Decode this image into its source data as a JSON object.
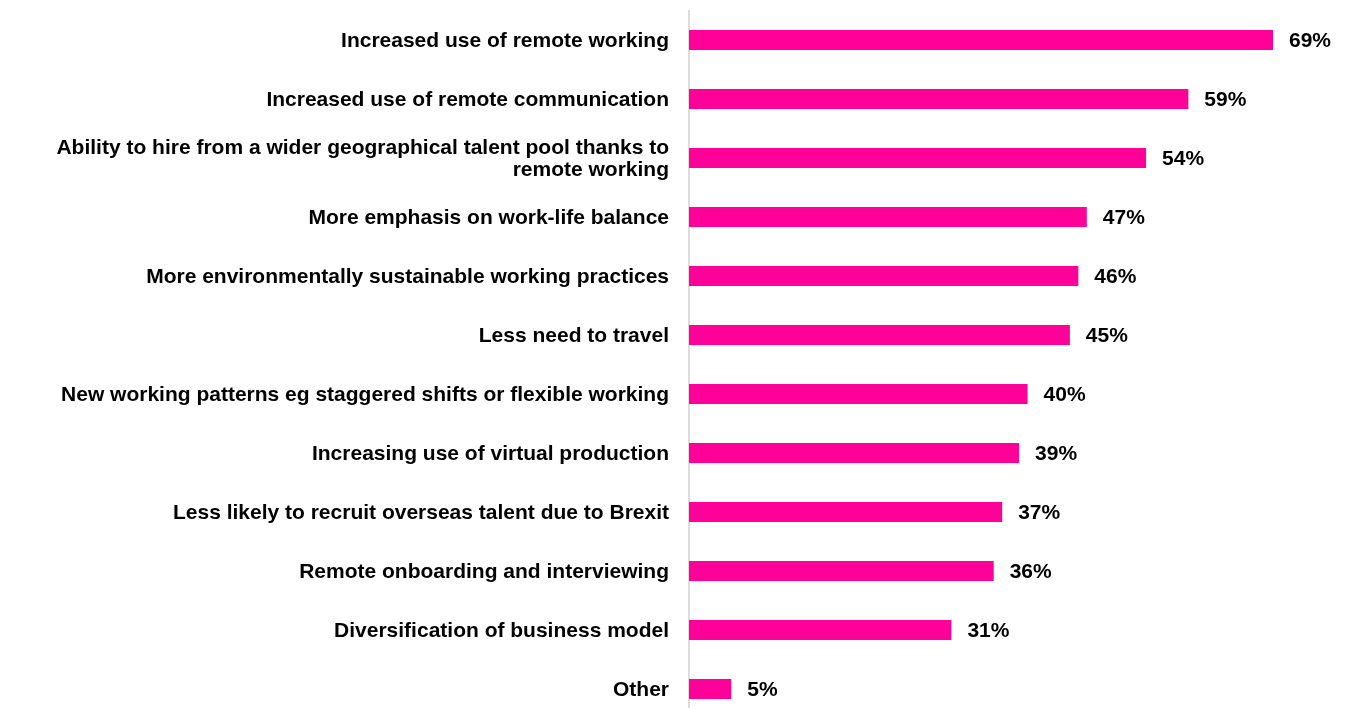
{
  "chart_data": {
    "type": "bar",
    "orientation": "horizontal",
    "categories": [
      "Increased use of remote working",
      "Increased use of remote communication",
      "Ability to hire from a wider geographical talent pool thanks to remote working",
      "More emphasis on work-life balance",
      "More environmentally sustainable working practices",
      "Less need to travel",
      "New working patterns eg staggered shifts or flexible working",
      "Increasing use of virtual production",
      "Less likely to recruit overseas talent due to Brexit",
      "Remote onboarding and interviewing",
      "Diversification of business model",
      "Other"
    ],
    "values": [
      69,
      59,
      54,
      47,
      46,
      45,
      40,
      39,
      37,
      36,
      31,
      5
    ],
    "value_labels": [
      "69%",
      "59%",
      "54%",
      "47%",
      "46%",
      "45%",
      "40%",
      "39%",
      "37%",
      "36%",
      "31%",
      "5%"
    ],
    "color": "#ff0099"
  }
}
